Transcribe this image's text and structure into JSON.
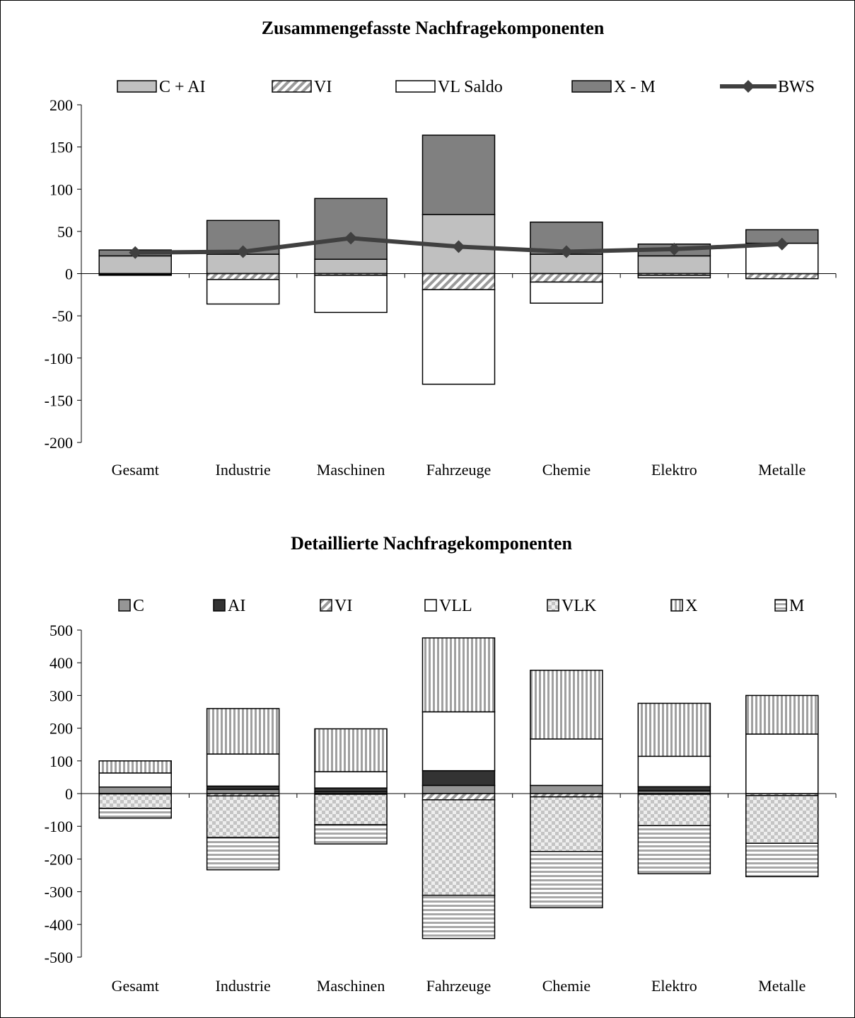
{
  "chart_data": [
    {
      "type": "bar",
      "stacked": true,
      "title": "Zusammengefasste Nachfragekomponenten",
      "xlabel": "",
      "ylabel": "",
      "ylim": [
        -200,
        200
      ],
      "yticks": [
        200,
        150,
        100,
        50,
        0,
        -50,
        -100,
        -150,
        -200
      ],
      "categories": [
        "Gesamt",
        "Industrie",
        "Maschinen",
        "Fahrzeuge",
        "Chemie",
        "Elektro",
        "Metalle"
      ],
      "series": [
        {
          "name": "C + AI",
          "kind": "bar",
          "pattern": "light",
          "values": [
            21,
            23,
            17,
            70,
            23,
            21,
            0
          ]
        },
        {
          "name": "VI",
          "kind": "bar",
          "pattern": "diag",
          "values": [
            -1,
            -7,
            -2,
            -19,
            -10,
            -2,
            -6
          ]
        },
        {
          "name": "VL Saldo",
          "kind": "bar",
          "pattern": "white",
          "values": [
            -1,
            -29,
            -44,
            -112,
            -25,
            -3,
            36
          ]
        },
        {
          "name": "X - M",
          "kind": "bar",
          "pattern": "dark",
          "values": [
            7,
            40,
            72,
            94,
            38,
            14,
            16
          ]
        },
        {
          "name": "BWS",
          "kind": "line",
          "values": [
            25,
            26,
            42,
            32,
            26,
            29,
            35
          ]
        }
      ],
      "legend_position": "top",
      "grid": false
    },
    {
      "type": "bar",
      "stacked": true,
      "title": "Detaillierte Nachfragekomponenten",
      "xlabel": "",
      "ylabel": "",
      "ylim": [
        -500,
        500
      ],
      "yticks": [
        500,
        400,
        300,
        200,
        100,
        0,
        -100,
        -200,
        -300,
        -400,
        -500
      ],
      "categories": [
        "Gesamt",
        "Industrie",
        "Maschinen",
        "Fahrzeuge",
        "Chemie",
        "Elektro",
        "Metalle"
      ],
      "series": [
        {
          "name": "C",
          "pattern": "gray",
          "values": [
            20,
            13,
            5,
            25,
            25,
            8,
            0
          ]
        },
        {
          "name": "AI",
          "pattern": "black",
          "values": [
            0,
            10,
            12,
            45,
            0,
            13,
            0
          ]
        },
        {
          "name": "VI",
          "pattern": "diag",
          "values": [
            -1,
            -7,
            -2,
            -19,
            -10,
            -2,
            -6
          ]
        },
        {
          "name": "VLL",
          "pattern": "white",
          "values": [
            43,
            98,
            50,
            180,
            142,
            93,
            182
          ]
        },
        {
          "name": "VLK",
          "pattern": "check",
          "values": [
            -44,
            -127,
            -93,
            -292,
            -167,
            -96,
            -146
          ]
        },
        {
          "name": "X",
          "pattern": "vert",
          "values": [
            37,
            139,
            131,
            226,
            210,
            162,
            118
          ]
        },
        {
          "name": "M",
          "pattern": "horiz",
          "values": [
            -30,
            -99,
            -59,
            -132,
            -172,
            -147,
            -102
          ]
        }
      ],
      "legend_position": "top",
      "grid": false
    }
  ]
}
